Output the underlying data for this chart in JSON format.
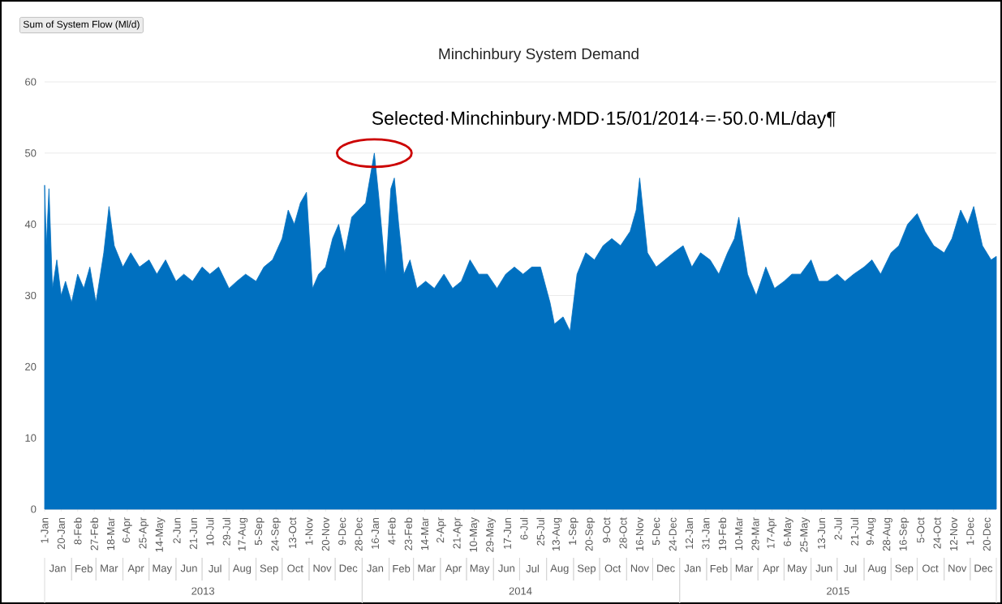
{
  "chart_data": {
    "type": "area",
    "title": "Minchinbury System Demand",
    "ylabel": "Sum of System Flow (Ml/d)",
    "color": "#0070c0",
    "ylim": [
      0,
      60
    ],
    "yticks": [
      0,
      10,
      20,
      30,
      40,
      50,
      60
    ],
    "grid": "y",
    "xlim": [
      "2013-01-01",
      "2015-12-31"
    ],
    "xticks": [
      {
        "value": "2013-01-01",
        "label": "1-Jan"
      },
      {
        "value": "2013-01-20",
        "label": "20-Jan"
      },
      {
        "value": "2013-02-08",
        "label": "8-Feb"
      },
      {
        "value": "2013-02-27",
        "label": "27-Feb"
      },
      {
        "value": "2013-03-18",
        "label": "18-Mar"
      },
      {
        "value": "2013-04-06",
        "label": "6-Apr"
      },
      {
        "value": "2013-04-25",
        "label": "25-Apr"
      },
      {
        "value": "2013-05-14",
        "label": "14-May"
      },
      {
        "value": "2013-06-02",
        "label": "2-Jun"
      },
      {
        "value": "2013-06-21",
        "label": "21-Jun"
      },
      {
        "value": "2013-07-10",
        "label": "10-Jul"
      },
      {
        "value": "2013-07-29",
        "label": "29-Jul"
      },
      {
        "value": "2013-08-17",
        "label": "17-Aug"
      },
      {
        "value": "2013-09-05",
        "label": "5-Sep"
      },
      {
        "value": "2013-09-24",
        "label": "24-Sep"
      },
      {
        "value": "2013-10-13",
        "label": "13-Oct"
      },
      {
        "value": "2013-11-01",
        "label": "1-Nov"
      },
      {
        "value": "2013-11-20",
        "label": "20-Nov"
      },
      {
        "value": "2013-12-09",
        "label": "9-Dec"
      },
      {
        "value": "2013-12-28",
        "label": "28-Dec"
      },
      {
        "value": "2014-01-16",
        "label": "16-Jan"
      },
      {
        "value": "2014-02-04",
        "label": "4-Feb"
      },
      {
        "value": "2014-02-23",
        "label": "23-Feb"
      },
      {
        "value": "2014-03-14",
        "label": "14-Mar"
      },
      {
        "value": "2014-04-02",
        "label": "2-Apr"
      },
      {
        "value": "2014-04-21",
        "label": "21-Apr"
      },
      {
        "value": "2014-05-10",
        "label": "10-May"
      },
      {
        "value": "2014-05-29",
        "label": "29-May"
      },
      {
        "value": "2014-06-17",
        "label": "17-Jun"
      },
      {
        "value": "2014-07-06",
        "label": "6-Jul"
      },
      {
        "value": "2014-07-25",
        "label": "25-Jul"
      },
      {
        "value": "2014-08-13",
        "label": "13-Aug"
      },
      {
        "value": "2014-09-01",
        "label": "1-Sep"
      },
      {
        "value": "2014-09-20",
        "label": "20-Sep"
      },
      {
        "value": "2014-10-09",
        "label": "9-Oct"
      },
      {
        "value": "2014-10-28",
        "label": "28-Oct"
      },
      {
        "value": "2014-11-16",
        "label": "16-Nov"
      },
      {
        "value": "2014-12-05",
        "label": "5-Dec"
      },
      {
        "value": "2014-12-24",
        "label": "24-Dec"
      },
      {
        "value": "2015-01-12",
        "label": "12-Jan"
      },
      {
        "value": "2015-01-31",
        "label": "31-Jan"
      },
      {
        "value": "2015-02-19",
        "label": "19-Feb"
      },
      {
        "value": "2015-03-10",
        "label": "10-Mar"
      },
      {
        "value": "2015-03-29",
        "label": "29-Mar"
      },
      {
        "value": "2015-04-17",
        "label": "17-Apr"
      },
      {
        "value": "2015-05-06",
        "label": "6-May"
      },
      {
        "value": "2015-05-25",
        "label": "25-May"
      },
      {
        "value": "2015-06-13",
        "label": "13-Jun"
      },
      {
        "value": "2015-07-02",
        "label": "2-Jul"
      },
      {
        "value": "2015-07-21",
        "label": "21-Jul"
      },
      {
        "value": "2015-08-09",
        "label": "9-Aug"
      },
      {
        "value": "2015-08-28",
        "label": "28-Aug"
      },
      {
        "value": "2015-09-16",
        "label": "16-Sep"
      },
      {
        "value": "2015-10-05",
        "label": "5-Oct"
      },
      {
        "value": "2015-10-24",
        "label": "24-Oct"
      },
      {
        "value": "2015-11-12",
        "label": "12-Nov"
      },
      {
        "value": "2015-12-01",
        "label": "1-Dec"
      },
      {
        "value": "2015-12-20",
        "label": "20-Dec"
      }
    ],
    "x": [
      "2013-01-01",
      "2013-01-03",
      "2013-01-06",
      "2013-01-10",
      "2013-01-15",
      "2013-01-20",
      "2013-01-25",
      "2013-02-01",
      "2013-02-08",
      "2013-02-15",
      "2013-02-22",
      "2013-03-01",
      "2013-03-10",
      "2013-03-16",
      "2013-03-22",
      "2013-04-01",
      "2013-04-10",
      "2013-04-20",
      "2013-05-01",
      "2013-05-10",
      "2013-05-20",
      "2013-06-01",
      "2013-06-10",
      "2013-06-20",
      "2013-07-01",
      "2013-07-10",
      "2013-07-20",
      "2013-08-01",
      "2013-08-10",
      "2013-08-20",
      "2013-09-01",
      "2013-09-10",
      "2013-09-20",
      "2013-10-01",
      "2013-10-08",
      "2013-10-15",
      "2013-10-22",
      "2013-10-29",
      "2013-11-05",
      "2013-11-12",
      "2013-11-20",
      "2013-11-28",
      "2013-12-05",
      "2013-12-12",
      "2013-12-20",
      "2013-12-28",
      "2014-01-05",
      "2014-01-15",
      "2014-01-20",
      "2014-01-28",
      "2014-02-03",
      "2014-02-07",
      "2014-02-12",
      "2014-02-18",
      "2014-02-25",
      "2014-03-05",
      "2014-03-15",
      "2014-03-25",
      "2014-04-05",
      "2014-04-15",
      "2014-04-25",
      "2014-05-05",
      "2014-05-15",
      "2014-05-25",
      "2014-06-05",
      "2014-06-15",
      "2014-06-25",
      "2014-07-05",
      "2014-07-15",
      "2014-07-25",
      "2014-08-05",
      "2014-08-10",
      "2014-08-20",
      "2014-08-28",
      "2014-09-05",
      "2014-09-15",
      "2014-09-25",
      "2014-10-05",
      "2014-10-15",
      "2014-10-25",
      "2014-11-05",
      "2014-11-12",
      "2014-11-16",
      "2014-11-25",
      "2014-12-05",
      "2014-12-15",
      "2014-12-25",
      "2015-01-05",
      "2015-01-15",
      "2015-01-25",
      "2015-02-05",
      "2015-02-15",
      "2015-02-25",
      "2015-03-05",
      "2015-03-10",
      "2015-03-20",
      "2015-03-30",
      "2015-04-10",
      "2015-04-20",
      "2015-05-01",
      "2015-05-10",
      "2015-05-20",
      "2015-06-01",
      "2015-06-10",
      "2015-06-20",
      "2015-07-01",
      "2015-07-10",
      "2015-07-20",
      "2015-08-01",
      "2015-08-10",
      "2015-08-20",
      "2015-09-01",
      "2015-09-10",
      "2015-09-20",
      "2015-10-01",
      "2015-10-10",
      "2015-10-20",
      "2015-11-01",
      "2015-11-10",
      "2015-11-20",
      "2015-11-28",
      "2015-12-05",
      "2015-12-15",
      "2015-12-25",
      "2015-12-31"
    ],
    "values": [
      45.5,
      37,
      45,
      31,
      35,
      30,
      32,
      29,
      33,
      31,
      34,
      29,
      36,
      42.5,
      37,
      34,
      36,
      34,
      35,
      33,
      35,
      32,
      33,
      32,
      34,
      33,
      34,
      31,
      32,
      33,
      32,
      34,
      35,
      38,
      42,
      40,
      43,
      44.5,
      31,
      33,
      34,
      38,
      40,
      36,
      41,
      42,
      43,
      50.0,
      44,
      33,
      45,
      46.5,
      40,
      33,
      35,
      31,
      32,
      31,
      33,
      31,
      32,
      35,
      33,
      33,
      31,
      33,
      34,
      33,
      34,
      34,
      29,
      26,
      27,
      25,
      33,
      36,
      35,
      37,
      38,
      37,
      39,
      42,
      46.5,
      36,
      34,
      35,
      36,
      37,
      34,
      36,
      35,
      33,
      36,
      38,
      41,
      33,
      30,
      34,
      31,
      32,
      33,
      33,
      35,
      32,
      32,
      33,
      32,
      33,
      34,
      35,
      33,
      36,
      37,
      40,
      41.5,
      39,
      37,
      36,
      38,
      42,
      40,
      42.5,
      37,
      35,
      35.5
    ],
    "annotations": [
      {
        "text": "Selected·Minchinbury·MDD·15/01/2014·=·50.0·ML/day¶",
        "x": "2014-01-15",
        "y": 50.0
      },
      "Jan",
      "Feb",
      "Mar",
      "Apr",
      "May",
      "Jun",
      "Jul",
      "Aug",
      "Sep",
      "Oct",
      "Nov",
      "Dec",
      "Jan",
      "Feb",
      "Mar",
      "Apr",
      "May",
      "Jun",
      "Jul",
      "Aug",
      "Sep",
      "Oct",
      "Nov",
      "Dec",
      "Jan",
      "Feb",
      "Mar",
      "Apr",
      "May",
      "Jun",
      "Jul",
      "Aug",
      "Sep",
      "Oct",
      "Nov",
      "Dec",
      "2013",
      "2014",
      "2015"
    ]
  }
}
